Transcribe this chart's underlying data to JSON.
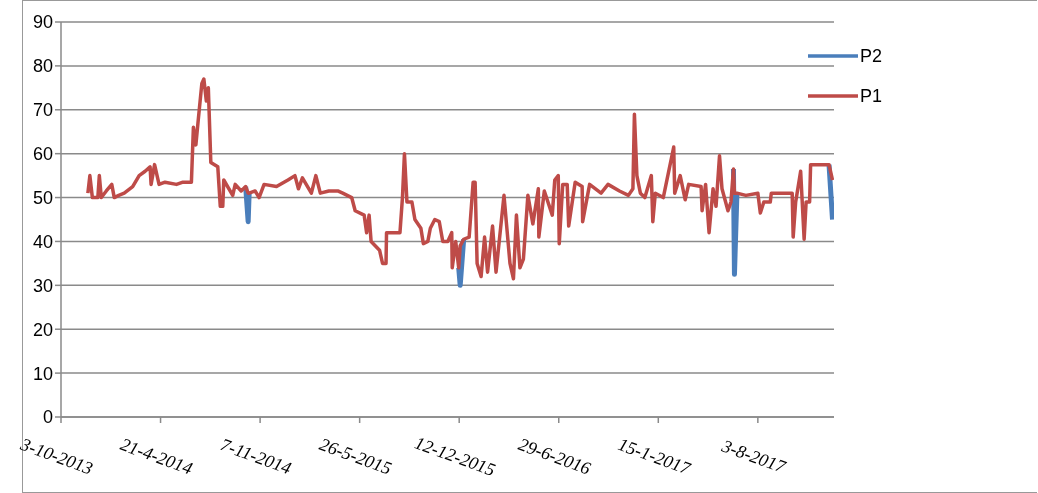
{
  "chart_data": {
    "type": "line",
    "x": [
      "2013-11-26",
      "2013-11-30",
      "2013-12-05",
      "2013-12-16",
      "2013-12-19",
      "2013-12-23",
      "2014-01-02",
      "2014-01-13",
      "2014-01-18",
      "2014-01-27",
      "2014-02-07",
      "2014-02-24",
      "2014-03-09",
      "2014-03-21",
      "2014-03-31",
      "2014-04-02",
      "2014-04-09",
      "2014-04-18",
      "2014-04-30",
      "2014-05-23",
      "2014-06-05",
      "2014-06-22",
      "2014-06-26",
      "2014-07-01",
      "2014-07-06",
      "2014-07-13",
      "2014-07-17",
      "2014-07-22",
      "2014-07-26",
      "2014-07-31",
      "2014-08-14",
      "2014-08-19",
      "2014-08-24",
      "2014-08-26",
      "2014-09-13",
      "2014-09-18",
      "2014-09-30",
      "2014-10-09",
      "2014-10-14",
      "2014-10-16",
      "2014-10-28",
      "2014-11-05",
      "2014-11-15",
      "2014-12-10",
      "2015-01-02",
      "2015-01-16",
      "2015-01-23",
      "2015-01-31",
      "2015-02-18",
      "2015-02-27",
      "2015-03-08",
      "2015-03-25",
      "2015-04-12",
      "2015-04-22",
      "2015-05-10",
      "2015-05-17",
      "2015-06-04",
      "2015-06-09",
      "2015-06-14",
      "2015-06-18",
      "2015-07-05",
      "2015-07-11",
      "2015-07-18",
      "2015-07-19",
      "2015-08-15",
      "2015-08-20",
      "2015-08-24",
      "2015-08-29",
      "2015-09-08",
      "2015-09-14",
      "2015-09-26",
      "2015-10-01",
      "2015-10-10",
      "2015-10-15",
      "2015-10-24",
      "2015-11-02",
      "2015-11-09",
      "2015-11-19",
      "2015-11-27",
      "2015-11-28",
      "2015-12-05",
      "2015-12-11",
      "2015-12-14",
      "2015-12-21",
      "2016-01-01",
      "2016-01-09",
      "2016-01-13",
      "2016-01-17",
      "2016-01-25",
      "2016-02-01",
      "2016-02-07",
      "2016-02-17",
      "2016-02-24",
      "2016-03-11",
      "2016-03-16",
      "2016-03-23",
      "2016-03-30",
      "2016-04-05",
      "2016-04-12",
      "2016-04-19",
      "2016-04-28",
      "2016-05-08",
      "2016-05-19",
      "2016-05-20",
      "2016-05-31",
      "2016-06-16",
      "2016-06-21",
      "2016-06-28",
      "2016-06-30",
      "2016-07-07",
      "2016-07-16",
      "2016-07-19",
      "2016-08-01",
      "2016-08-15",
      "2016-08-16",
      "2016-08-30",
      "2016-09-22",
      "2016-10-06",
      "2016-10-29",
      "2016-11-16",
      "2016-11-25",
      "2016-11-28",
      "2016-12-03",
      "2016-12-10",
      "2016-12-19",
      "2017-01-01",
      "2017-01-04",
      "2017-01-09",
      "2017-01-25",
      "2017-02-15",
      "2017-02-17",
      "2017-02-28",
      "2017-03-10",
      "2017-03-17",
      "2017-04-11",
      "2017-04-13",
      "2017-04-20",
      "2017-04-27",
      "2017-05-05",
      "2017-05-11",
      "2017-05-18",
      "2017-05-23",
      "2017-06-04",
      "2017-06-10",
      "2017-06-15",
      "2017-06-17",
      "2017-06-22",
      "2017-07-10",
      "2017-08-03",
      "2017-08-08",
      "2017-08-15",
      "2017-08-28",
      "2017-08-30",
      "2017-10-11",
      "2017-10-13",
      "2017-10-18",
      "2017-10-28",
      "2017-11-04",
      "2017-11-08",
      "2017-11-15",
      "2017-11-17",
      "2017-12-24",
      "2017-12-31"
    ],
    "series": [
      {
        "name": "P2",
        "color": "#4a7ebb",
        "x": [
          "2014-10-09",
          "2014-10-14",
          "2014-10-16",
          "2015-06-01",
          "2015-12-11",
          "2015-12-14",
          "2015-12-21",
          "2016-06-01",
          "2017-06-15",
          "2017-06-17",
          "2017-06-22",
          "2017-09-01",
          "2017-12-24",
          "2017-12-31"
        ],
        "values": [
          52.5,
          44.5,
          51,
          null,
          34,
          30,
          40.5,
          null,
          56.5,
          32.5,
          51,
          null,
          57.5,
          45
        ]
      },
      {
        "name": "P1",
        "color": "#be4b48",
        "values": [
          51,
          55,
          50,
          50,
          55,
          50,
          51.5,
          53,
          50,
          50.5,
          51,
          52.5,
          55,
          56,
          57,
          53,
          57.5,
          53,
          53.5,
          53,
          53.5,
          53.5,
          66,
          62,
          68,
          76,
          77,
          72,
          75,
          58,
          57,
          48,
          48,
          54,
          50.5,
          53,
          51.5,
          52.5,
          51,
          51,
          51.5,
          50,
          53,
          52.5,
          54,
          55,
          52,
          54.5,
          51,
          55,
          51,
          51.5,
          51.5,
          51,
          50,
          47,
          46,
          42,
          46,
          40,
          38,
          35,
          35,
          42,
          42,
          50,
          60,
          49,
          49,
          45,
          43,
          39.5,
          40,
          43,
          45,
          44.5,
          40,
          40,
          42,
          34,
          40,
          34,
          39,
          40.5,
          41,
          53.5,
          53.5,
          35,
          32,
          41,
          33,
          43.5,
          33,
          50.5,
          44,
          35,
          31.5,
          46,
          34,
          36,
          50.5,
          44,
          52,
          41,
          51.5,
          46,
          54,
          55,
          39.5,
          53,
          53,
          43.5,
          53.5,
          52.5,
          44.5,
          53,
          51,
          53,
          51.5,
          50.5,
          52,
          69,
          55,
          51,
          50,
          55,
          44.5,
          51,
          50,
          61.5,
          51,
          55,
          49.5,
          53,
          52.5,
          47,
          53,
          42,
          52,
          48,
          59.5,
          52,
          47,
          49,
          56.5,
          51,
          51,
          50.5,
          51,
          46.5,
          49,
          49,
          51,
          51,
          41,
          49,
          56,
          40.5,
          49,
          49,
          57.5,
          57.5,
          54
        ]
      }
    ],
    "xlim": [
      "2013-10-03",
      "2018-01-03"
    ],
    "xticks": [
      {
        "value": "2013-10-03",
        "label": "3-10-2013"
      },
      {
        "value": "2014-04-21",
        "label": "21-4-2014"
      },
      {
        "value": "2014-11-07",
        "label": "7-11-2014"
      },
      {
        "value": "2015-05-26",
        "label": "26-5-2015"
      },
      {
        "value": "2015-12-12",
        "label": "12-12-2015"
      },
      {
        "value": "2016-06-29",
        "label": "29-6-2016"
      },
      {
        "value": "2017-01-15",
        "label": "15-1-2017"
      },
      {
        "value": "2017-08-03",
        "label": "3-8-2017"
      }
    ],
    "ylim": [
      0,
      90
    ],
    "yticks": [
      0,
      10,
      20,
      30,
      40,
      50,
      60,
      70,
      80,
      90
    ],
    "grid": "y",
    "legend": "top right"
  }
}
